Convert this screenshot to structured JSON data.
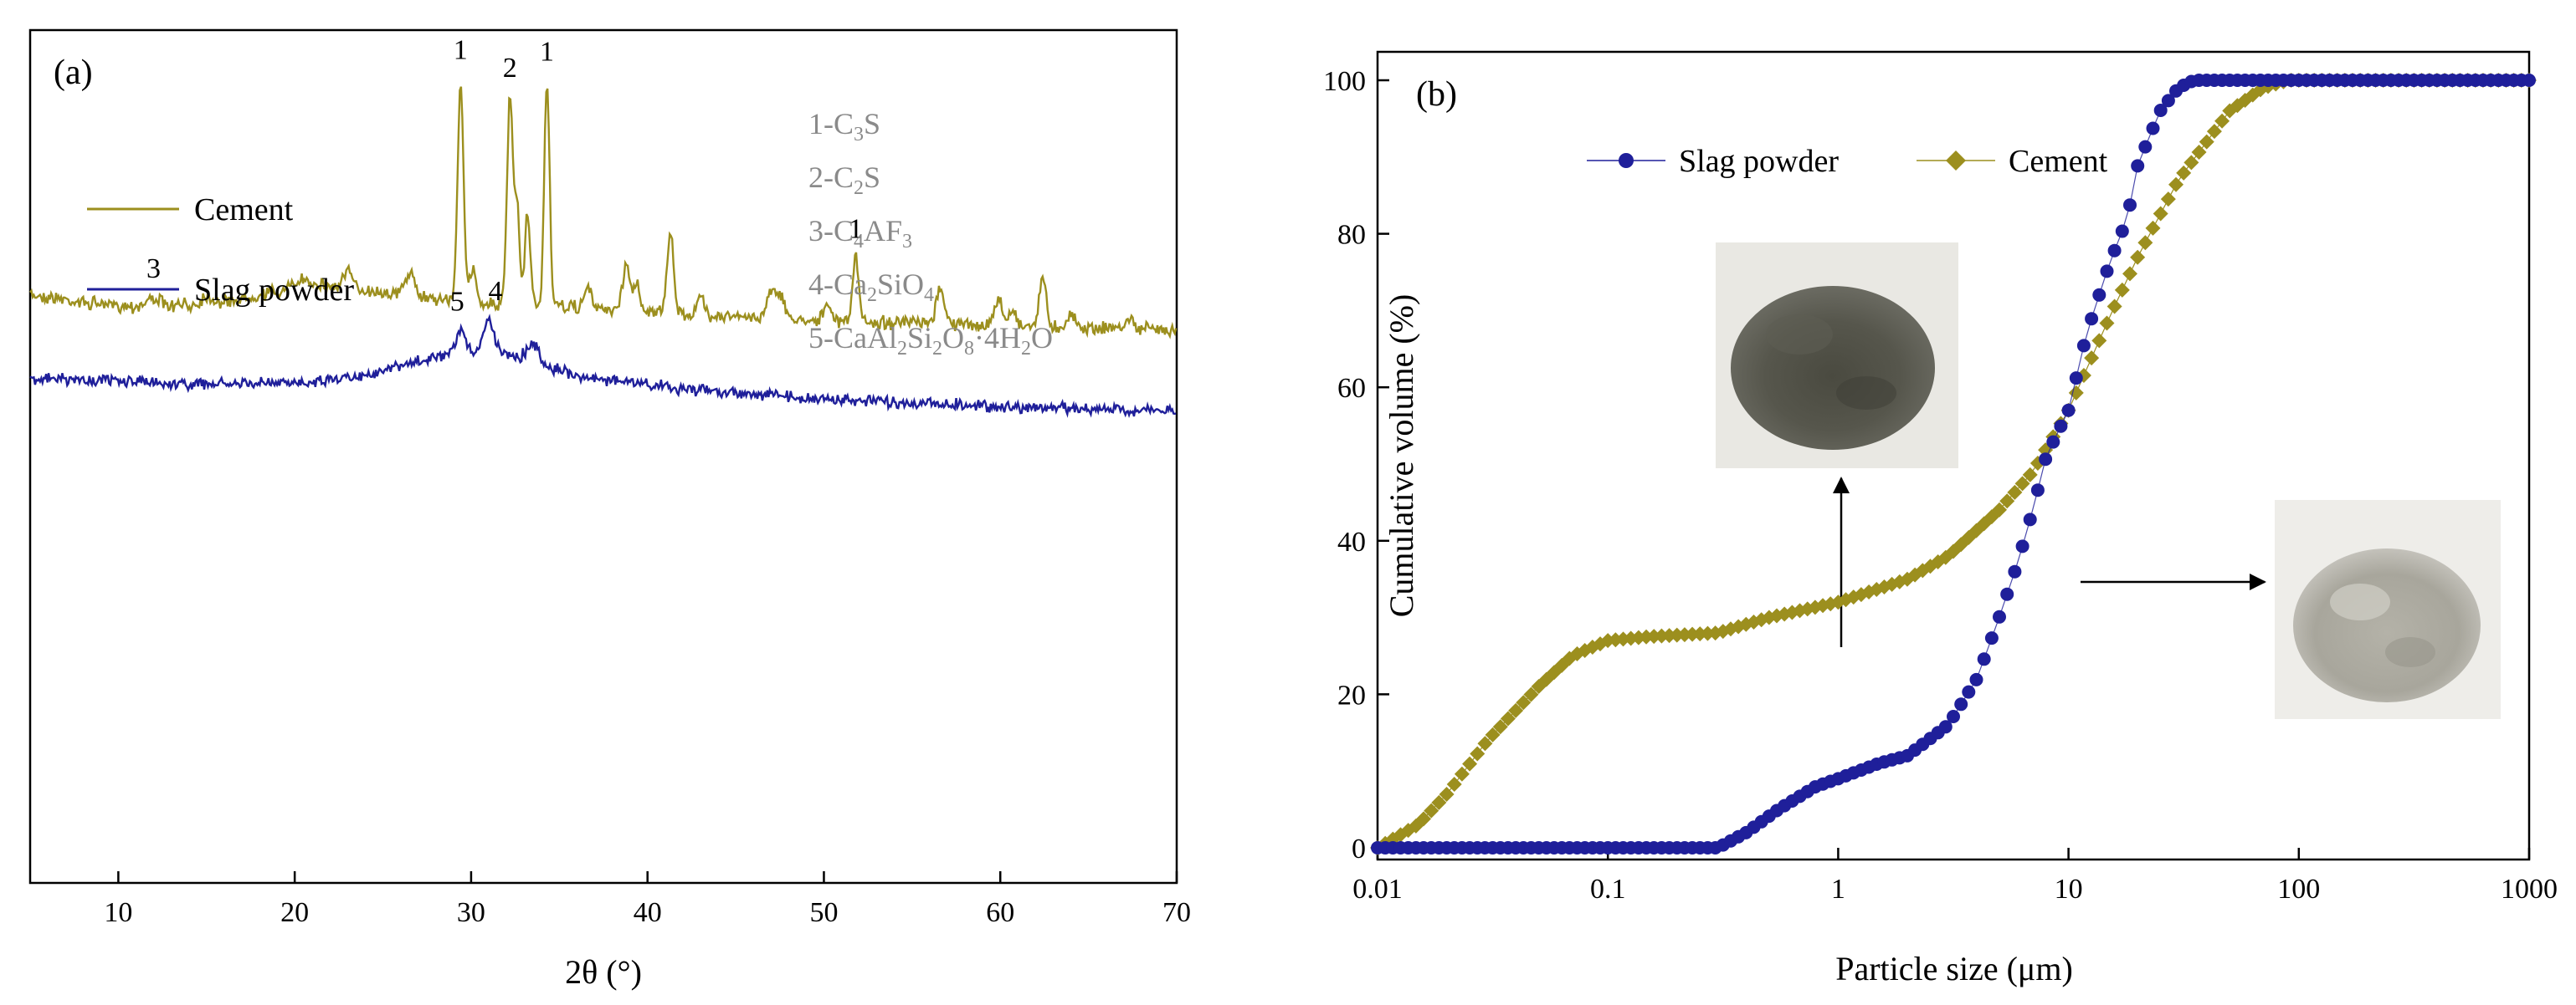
{
  "colors": {
    "cement": "#9C8F1E",
    "slag": "#1F1F9A",
    "phase_text": "#8a8a8a"
  },
  "chart_data": [
    {
      "panel": "(a)",
      "type": "line",
      "title": "",
      "xlabel": "2θ (°)",
      "ylabel": "",
      "xlim": [
        5,
        70
      ],
      "xticks": [
        10,
        20,
        30,
        40,
        50,
        60,
        70
      ],
      "grid": false,
      "legend": {
        "placement": "top-left",
        "entries": [
          {
            "name": "Cement"
          },
          {
            "name": "Slag powder"
          }
        ]
      },
      "phase_legend": [
        {
          "id": "1",
          "pre": "1-C",
          "parts": [
            [
              "3",
              "S"
            ]
          ],
          "plain": "1-C3S"
        },
        {
          "id": "2",
          "pre": "2-C",
          "parts": [
            [
              "2",
              "S"
            ]
          ],
          "plain": "2-C2S"
        },
        {
          "id": "3",
          "pre": "3-C",
          "parts": [
            [
              "4",
              "AF"
            ],
            [
              "3",
              ""
            ]
          ],
          "plain": "3-C4AF3"
        },
        {
          "id": "4",
          "pre": "4-Ca",
          "parts": [
            [
              "2",
              "SiO"
            ],
            [
              "4",
              ""
            ]
          ],
          "plain": "4-Ca2SiO4"
        },
        {
          "id": "5",
          "pre": "5-CaAl",
          "parts": [
            [
              "2",
              "Si"
            ],
            [
              "2",
              "O"
            ],
            [
              "8",
              "·4H"
            ],
            [
              "2",
              "O"
            ]
          ],
          "plain": "5-CaAl2Si2O8·4H2O"
        }
      ],
      "series": [
        {
          "name": "Cement",
          "baseline": [
            [
              5,
              352
            ],
            [
              8,
              362
            ],
            [
              12,
              368
            ],
            [
              16,
              362
            ],
            [
              21,
              340
            ],
            [
              26,
              352
            ],
            [
              30,
              362
            ],
            [
              38,
              370
            ],
            [
              46,
              380
            ],
            [
              54,
              386
            ],
            [
              62,
              390
            ],
            [
              70,
              394
            ]
          ],
          "peaks": [
            [
              12.0,
              12,
              0.35
            ],
            [
              15.0,
              10,
              0.3
            ],
            [
              20.5,
              8,
              0.4
            ],
            [
              23.0,
              20,
              0.25
            ],
            [
              26.5,
              28,
              0.25
            ],
            [
              29.4,
              266,
              0.16
            ],
            [
              30.1,
              40,
              0.2
            ],
            [
              32.2,
              248,
              0.16
            ],
            [
              32.6,
              120,
              0.14
            ],
            [
              33.2,
              110,
              0.15
            ],
            [
              34.3,
              270,
              0.15
            ],
            [
              36.6,
              25,
              0.2
            ],
            [
              38.8,
              55,
              0.2
            ],
            [
              39.4,
              30,
              0.2
            ],
            [
              41.3,
              96,
              0.18
            ],
            [
              43.0,
              20,
              0.2
            ],
            [
              47.0,
              32,
              0.25
            ],
            [
              47.5,
              25,
              0.25
            ],
            [
              50.2,
              15,
              0.25
            ],
            [
              51.8,
              76,
              0.17
            ],
            [
              56.6,
              48,
              0.2
            ],
            [
              59.9,
              32,
              0.2
            ],
            [
              60.7,
              20,
              0.2
            ],
            [
              62.4,
              58,
              0.2
            ],
            [
              64.0,
              15,
              0.2
            ],
            [
              67.3,
              12,
              0.2
            ]
          ],
          "peak_labels": [
            {
              "text": "3",
              "x": 12.0
            },
            {
              "text": "1",
              "x": 29.4
            },
            {
              "text": "2",
              "x": 32.2
            },
            {
              "text": "1",
              "x": 34.3
            },
            {
              "text": "1",
              "x": 51.8
            }
          ]
        },
        {
          "name": "Slag powder",
          "baseline": [
            [
              5,
              452
            ],
            [
              10,
              456
            ],
            [
              15,
              460
            ],
            [
              20,
              458
            ],
            [
              24,
              448
            ],
            [
              28,
              428
            ],
            [
              31,
              418
            ],
            [
              33,
              428
            ],
            [
              36,
              450
            ],
            [
              42,
              465
            ],
            [
              50,
              478
            ],
            [
              60,
              486
            ],
            [
              70,
              492
            ]
          ],
          "peaks": [
            [
              29.4,
              28,
              0.25
            ],
            [
              31.0,
              35,
              0.3
            ],
            [
              33.5,
              20,
              0.3
            ]
          ],
          "peak_labels": [
            {
              "text": "5",
              "x": 29.4
            },
            {
              "text": "4",
              "x": 31.0
            }
          ]
        }
      ]
    },
    {
      "panel": "(b)",
      "type": "line",
      "title": "",
      "xlabel": "Particle size (μm)",
      "ylabel": "Cumulative volume (%)",
      "xscale": "log",
      "xlim": [
        0.01,
        1000
      ],
      "ylim": [
        0,
        100
      ],
      "xticks": [
        "0.01",
        "0.1",
        "1",
        "10",
        "100",
        "1000"
      ],
      "yticks": [
        "0",
        "20",
        "40",
        "60",
        "80",
        "100"
      ],
      "grid": false,
      "legend": {
        "placement": "top-left",
        "entries": [
          {
            "name": "Slag powder",
            "marker": "circle"
          },
          {
            "name": "Cement",
            "marker": "diamond"
          }
        ]
      },
      "insets": [
        {
          "name": "Cement powder photo",
          "arrow": "up"
        },
        {
          "name": "Slag powder photo",
          "arrow": "right"
        }
      ],
      "series": [
        {
          "name": "Slag powder",
          "x": [
            0.01,
            0.3,
            0.4,
            0.55,
            0.8,
            1.0,
            1.5,
            2.0,
            3.0,
            4.0,
            5.0,
            6.0,
            7.0,
            8.0,
            10.0,
            12.0,
            15.0,
            18.0,
            20.0,
            25.0,
            30.0,
            35.0,
            1000
          ],
          "y": [
            0,
            0,
            2,
            5,
            8,
            9,
            11,
            12,
            16,
            22,
            30,
            37,
            44,
            51,
            57,
            67,
            76,
            82,
            89,
            96,
            99,
            100,
            100
          ]
        },
        {
          "name": "Cement",
          "x": [
            0.01,
            0.015,
            0.02,
            0.03,
            0.05,
            0.07,
            0.1,
            0.15,
            0.3,
            0.5,
            1.0,
            2.0,
            3.0,
            5.0,
            7.0,
            10.0,
            15.0,
            20.0,
            30.0,
            50.0,
            70.0,
            90.0,
            1000
          ],
          "y": [
            0,
            3,
            7,
            14,
            21,
            25,
            27,
            27.5,
            28,
            30,
            32,
            35,
            38,
            44,
            49,
            57,
            69,
            77,
            87,
            96,
            99,
            100,
            100
          ]
        }
      ]
    }
  ]
}
